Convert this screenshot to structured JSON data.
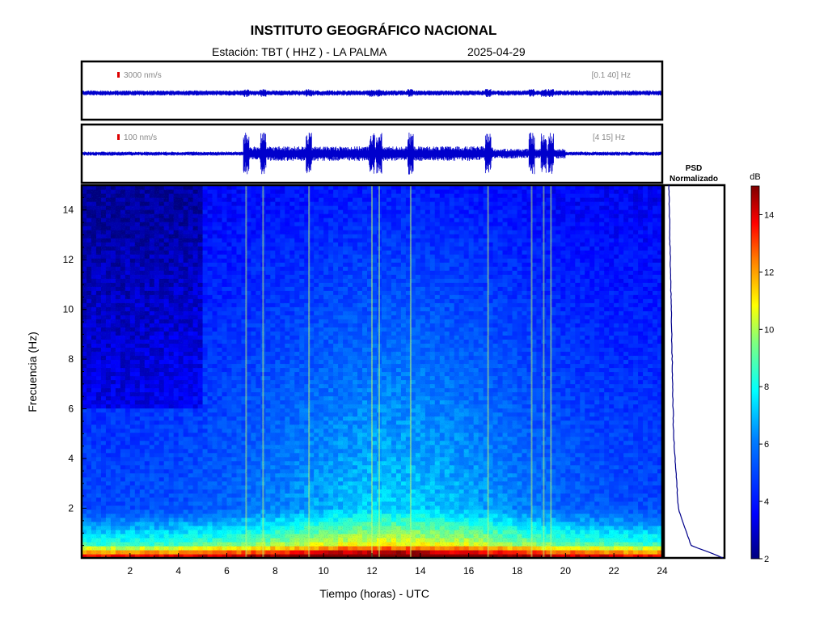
{
  "header": {
    "title": "INSTITUTO GEOGRÁFICO NACIONAL",
    "station": "Estación:  TBT ( HHZ ) - LA PALMA",
    "date": "2025-04-29"
  },
  "traces": [
    {
      "scale_label": "3000 nm/s",
      "band_label": "[0.1 40] Hz"
    },
    {
      "scale_label": "100 nm/s",
      "band_label": "[4 15] Hz"
    }
  ],
  "psd": {
    "title_line1": "PSD",
    "title_line2": "Normalizado"
  },
  "colorbar": {
    "unit": "dB",
    "ticks": [
      2,
      4,
      6,
      8,
      10,
      12,
      14
    ],
    "range": [
      2,
      15
    ],
    "colormap": [
      "#00007f",
      "#0000ff",
      "#007fff",
      "#00ffff",
      "#7fff7f",
      "#ffff00",
      "#ff7f00",
      "#ff0000",
      "#7f0000"
    ]
  },
  "chart_data": {
    "type": "heatmap",
    "xlabel": "Tiempo (horas) - UTC",
    "ylabel": "Frecuencia  (Hz)",
    "xlim": [
      0,
      24
    ],
    "ylim": [
      0,
      15
    ],
    "xticks": [
      2,
      4,
      6,
      8,
      10,
      12,
      14,
      16,
      18,
      20,
      22,
      24
    ],
    "yticks": [
      2,
      4,
      6,
      8,
      10,
      12,
      14
    ],
    "grid": false,
    "bursts_hours": [
      6.8,
      7.5,
      9.4,
      12.0,
      12.3,
      13.6,
      16.8,
      18.6,
      19.1,
      19.4
    ]
  },
  "colors": {
    "frame": "#000000",
    "trace": "#0000cc",
    "scale_marker": "#dd0000",
    "psd_line": "#00008b"
  }
}
